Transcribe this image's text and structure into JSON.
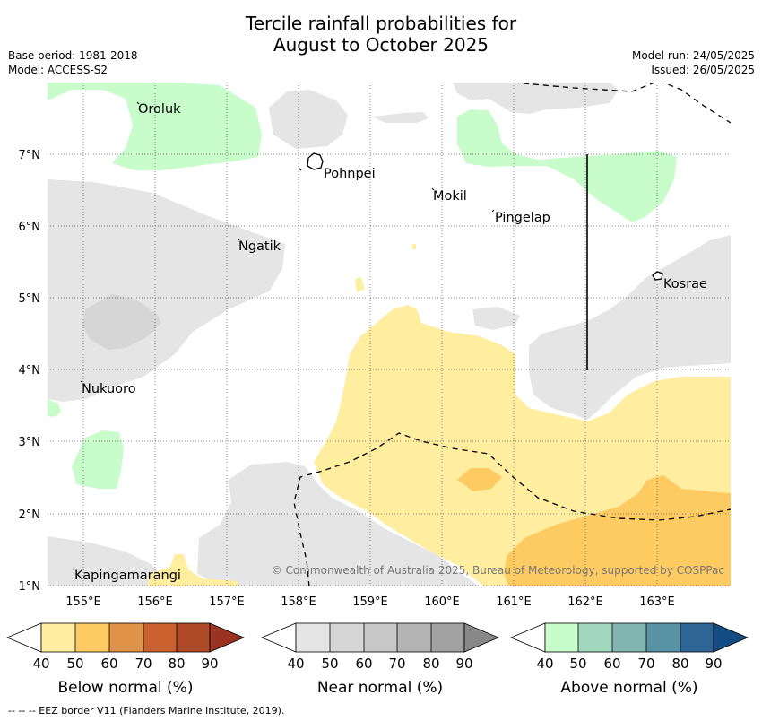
{
  "title_line1": "Tercile rainfall probabilities for",
  "title_line2": "August to October 2025",
  "meta": {
    "base_period": "Base period: 1981-2018",
    "model": "Model: ACCESS-S2",
    "model_run": "Model run: 24/05/2025",
    "issued": "Issued: 26/05/2025"
  },
  "axes": {
    "lon_ticks": [
      "155°E",
      "156°E",
      "157°E",
      "158°E",
      "159°E",
      "160°E",
      "161°E",
      "162°E",
      "163°E"
    ],
    "lat_ticks": [
      "7°N",
      "6°N",
      "5°N",
      "4°N",
      "3°N",
      "2°N",
      "1°N"
    ]
  },
  "places": [
    {
      "name": "Oroluk"
    },
    {
      "name": "Pohnpei"
    },
    {
      "name": "Mokil"
    },
    {
      "name": "Pingelap"
    },
    {
      "name": "Ngatik"
    },
    {
      "name": "Kosrae"
    },
    {
      "name": "Nukuoro"
    },
    {
      "name": "Kapingamarangi"
    }
  ],
  "copyright": "© Commonwealth of Australia 2025, Bureau of Meteorology, supported by COSPPac",
  "colorbars": [
    {
      "label": "Below normal (%)",
      "ticks": [
        "40",
        "50",
        "60",
        "70",
        "80",
        "90"
      ],
      "colors": [
        "#ffeda0",
        "#fecb63",
        "#e09346",
        "#cc6130",
        "#b04b28",
        "#9a3222"
      ]
    },
    {
      "label": "Near normal (%)",
      "ticks": [
        "40",
        "50",
        "60",
        "70",
        "80",
        "90"
      ],
      "colors": [
        "#e5e5e5",
        "#d6d6d6",
        "#c8c8c8",
        "#b4b4b4",
        "#a2a2a2",
        "#888888"
      ]
    },
    {
      "label": "Above normal (%)",
      "ticks": [
        "40",
        "50",
        "60",
        "70",
        "80",
        "90"
      ],
      "colors": [
        "#c8fccb",
        "#a2d8c0",
        "#82b6b2",
        "#5893a5",
        "#2e6597",
        "#134c82"
      ]
    }
  ],
  "footnote": "--  --  -- EEZ border V11 (Flanders Marine Institute, 2019).",
  "colors": {
    "below_normal": "#ffeda0",
    "below_normal_50": "#fecb63",
    "near_normal": "#e5e5e5",
    "near_normal_50": "#d6d6d6",
    "above_normal": "#c8fccb"
  }
}
